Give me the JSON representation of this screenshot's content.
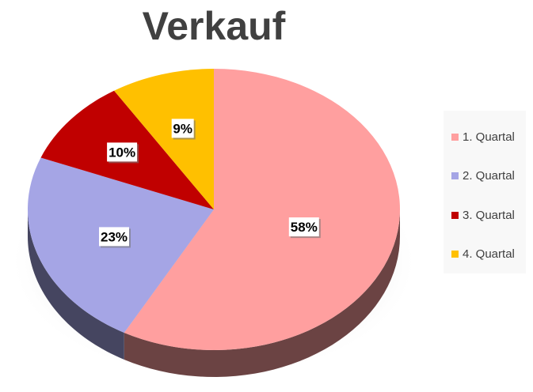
{
  "chart_data": {
    "type": "pie",
    "title": "Verkauf",
    "categories": [
      "1. Quartal",
      "2. Quartal",
      "3. Quartal",
      "4. Quartal"
    ],
    "values": [
      58,
      23,
      10,
      9
    ],
    "data_labels": [
      "58%",
      "23%",
      "10%",
      "9%"
    ],
    "colors": [
      "#ff9f9f",
      "#a5a5e5",
      "#c00000",
      "#ffc000"
    ],
    "style": "3d",
    "legend_position": "right"
  }
}
